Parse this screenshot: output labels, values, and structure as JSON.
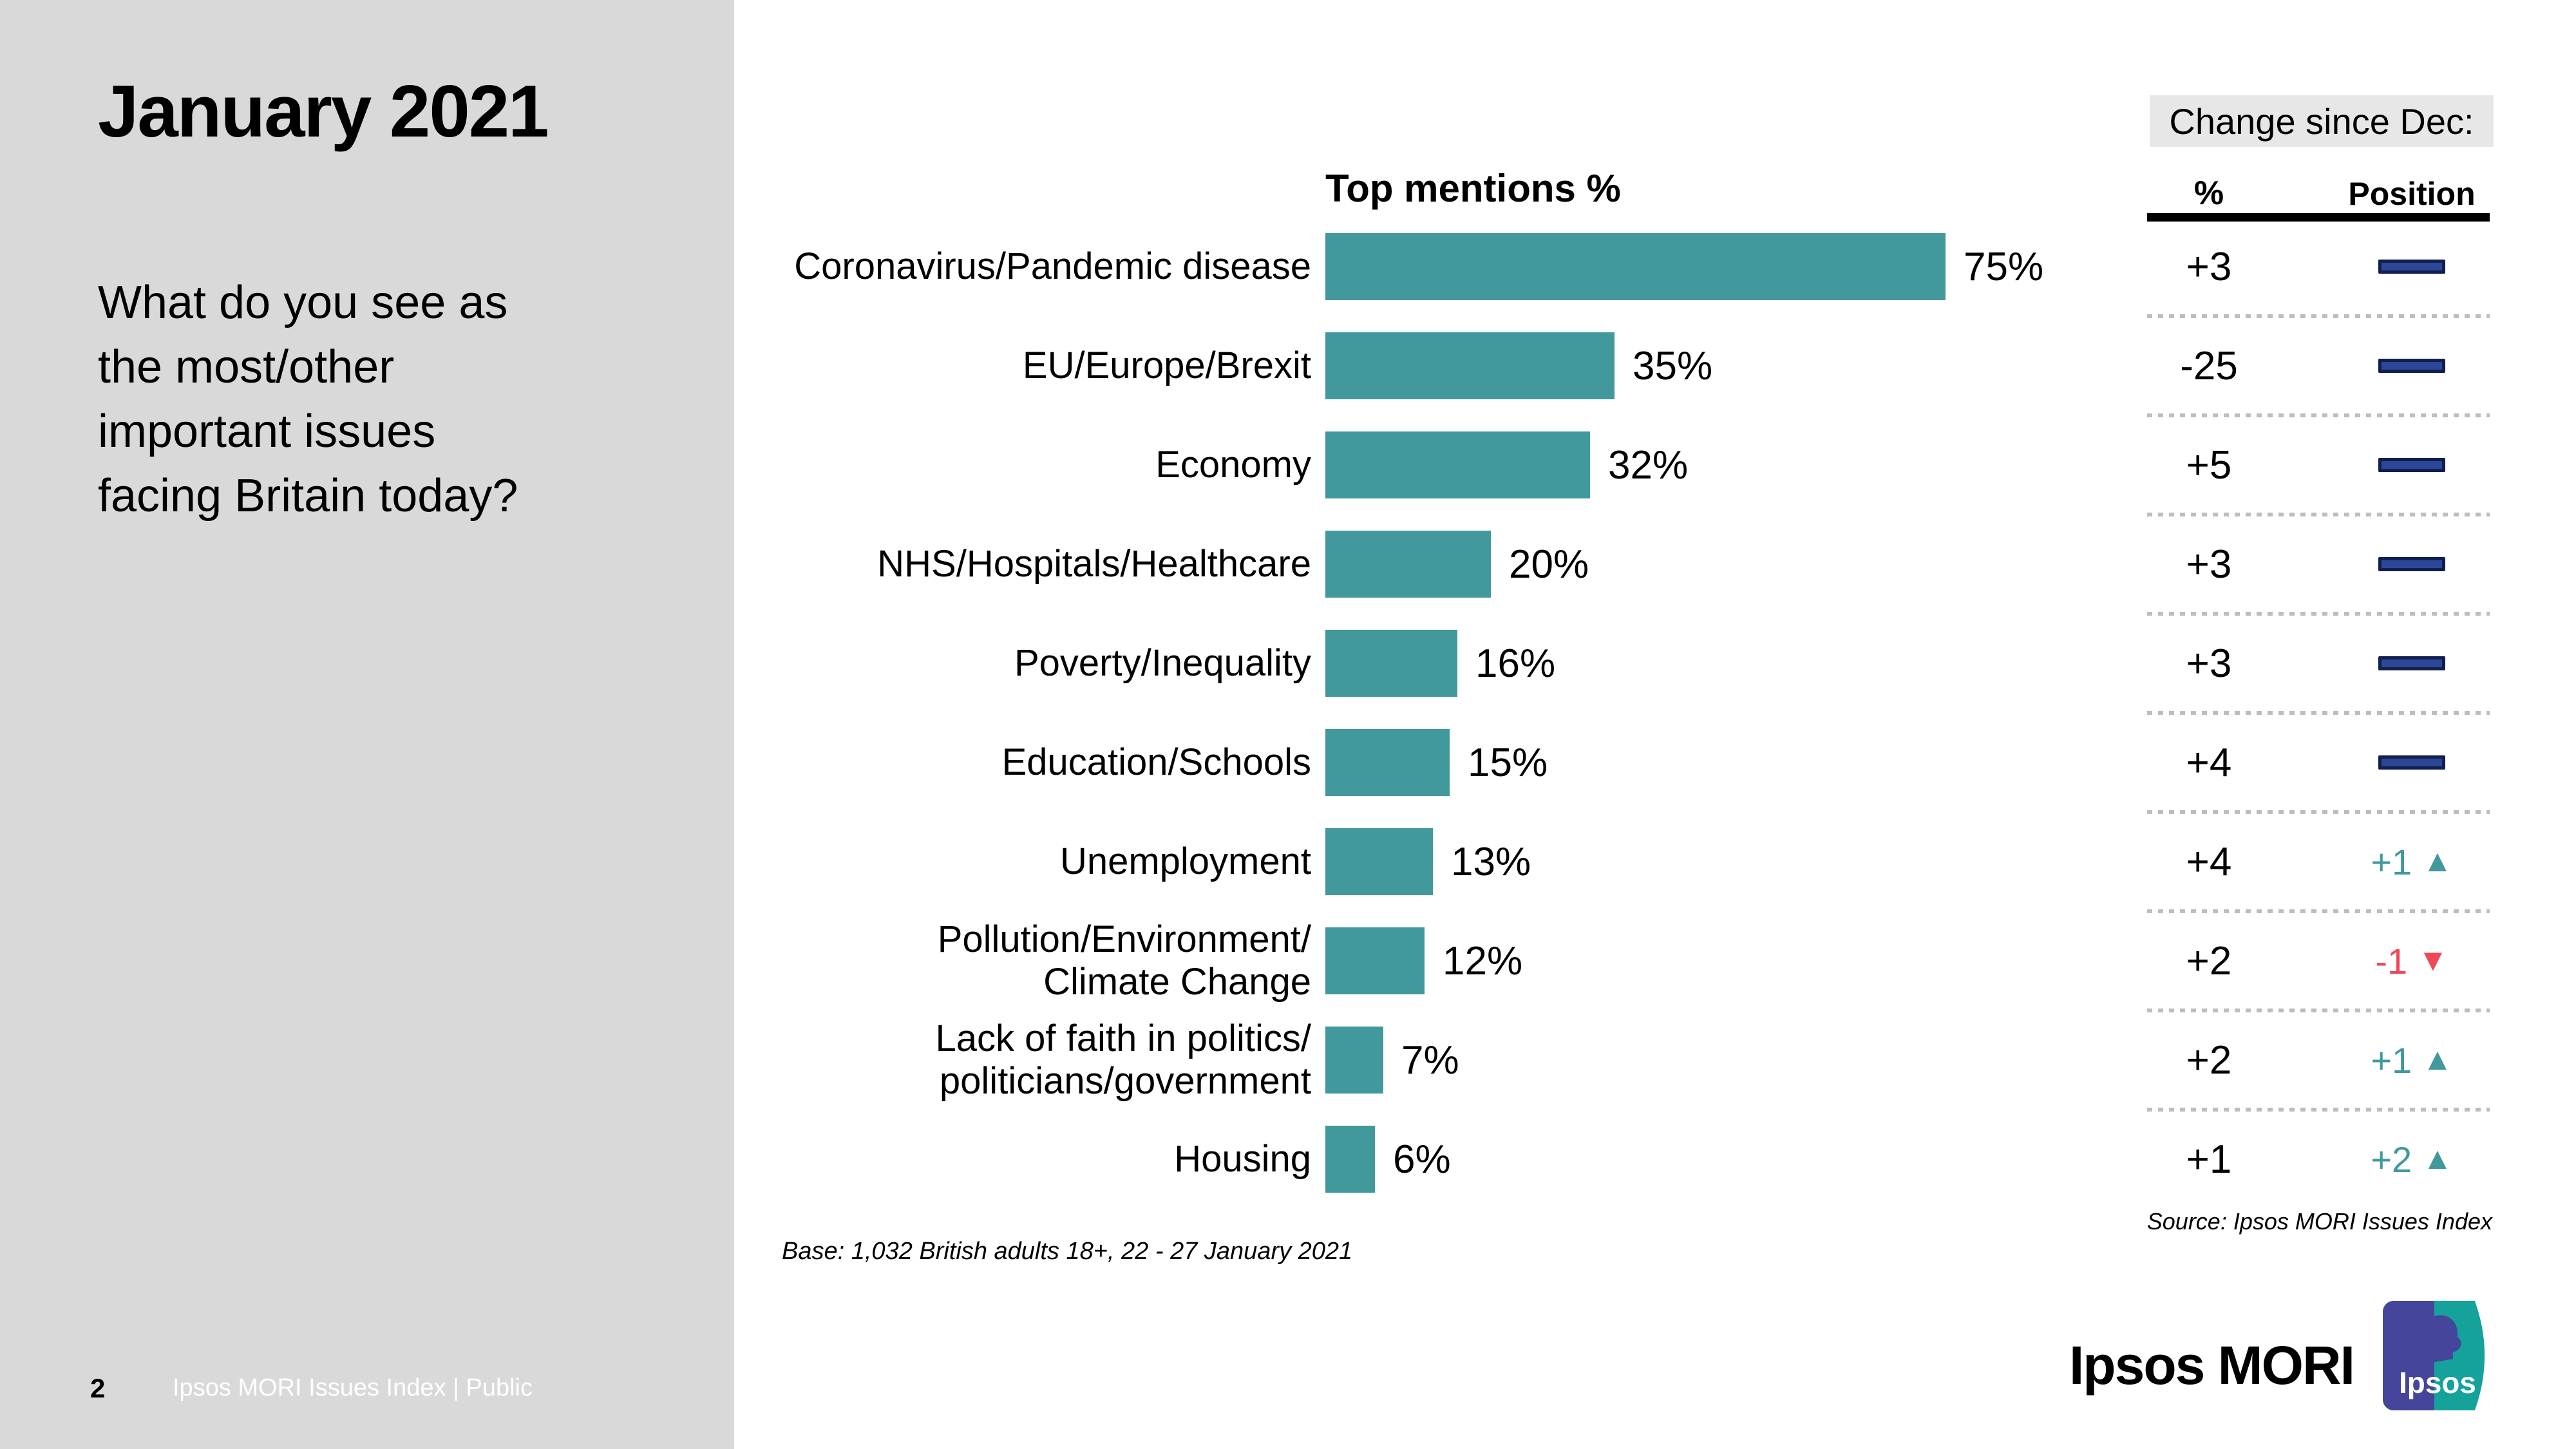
{
  "sidebar": {
    "title": "January 2021",
    "question": "What do you see as\nthe most/other\nimportant issues\nfacing Britain today?",
    "page_number": "2",
    "footer_label": "Ipsos MORI Issues Index | Public"
  },
  "chart_data": {
    "type": "bar",
    "orientation": "horizontal",
    "title": "Top mentions %",
    "value_suffix": "%",
    "xlim": [
      0,
      80
    ],
    "grid": false,
    "categories": [
      [
        "Coronavirus/Pandemic disease"
      ],
      [
        "EU/Europe/Brexit"
      ],
      [
        "Economy"
      ],
      [
        "NHS/Hospitals/Healthcare"
      ],
      [
        "Poverty/Inequality"
      ],
      [
        "Education/Schools"
      ],
      [
        "Unemployment"
      ],
      [
        "Pollution/Environment/",
        "Climate Change"
      ],
      [
        "Lack of faith in politics/",
        "politicians/government"
      ],
      [
        "Housing"
      ]
    ],
    "values": [
      75,
      35,
      32,
      20,
      16,
      15,
      13,
      12,
      7,
      6
    ],
    "change_pct": [
      "+3",
      "-25",
      "+5",
      "+3",
      "+3",
      "+4",
      "+4",
      "+2",
      "+2",
      "+1"
    ],
    "position_change": [
      null,
      null,
      null,
      null,
      null,
      null,
      {
        "label": "+1",
        "dir": "up"
      },
      {
        "label": "-1",
        "dir": "down"
      },
      {
        "label": "+1",
        "dir": "up"
      },
      {
        "label": "+2",
        "dir": "up"
      }
    ]
  },
  "change_panel": {
    "header": "Change since Dec:",
    "col_pct": "%",
    "col_pos": "Position",
    "source": "Source: Ipsos MORI Issues Index"
  },
  "base_note": "Base: 1,032 British adults 18+, 22 - 27 January 2021",
  "branding": {
    "wordmark": "Ipsos MORI",
    "logo_text": "Ipsos"
  },
  "icons": {
    "up_arrow": "▲",
    "down_arrow": "▼"
  },
  "colors": {
    "bar": "#42999B",
    "up": "#42999B",
    "down": "#EF4658",
    "dash_fill": "#2C4797",
    "dash_border": "#111F4D",
    "sidebar_bg": "#D9D9D9",
    "band_bg": "#E7E7E7",
    "dot": "#BDBDBD",
    "footer_text": "#FFFFFF",
    "logo_indigo": "#44459B",
    "logo_teal": "#14A29A"
  }
}
